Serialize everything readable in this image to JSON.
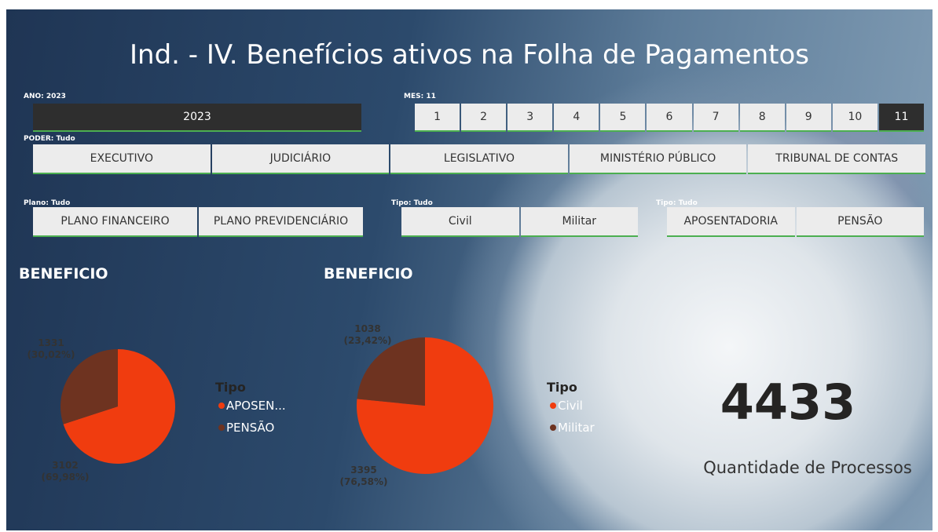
{
  "title": "Ind. - IV. Benefícios ativos na Folha de Pagamentos",
  "slicers": [
    {
      "label": "ANO: 2023",
      "items": [
        2023
      ],
      "selected": 2023
    },
    {
      "label": "MES: 11",
      "items": [
        1,
        2,
        3,
        4,
        5,
        6,
        7,
        8,
        9,
        10,
        11
      ],
      "selected": 11
    },
    {
      "label": "PODER: Tudo",
      "items": [
        "EXECUTIVO",
        "JUDICIÁRIO",
        "LEGISLATIVO",
        "MINISTÉRIO PÚBLICO",
        "TRIBUNAL DE CONTAS"
      ]
    },
    {
      "label": "Plano: Tudo",
      "items": [
        "PLANO FINANCEIRO",
        "PLANO PREVIDENCIÁRIO"
      ]
    },
    {
      "label": "Tipo: Tudo",
      "items": [
        "Civil",
        "Militar"
      ]
    },
    {
      "label": "Tipo: Tudo",
      "items": [
        "APOSENTADORIA",
        "PENSÃO"
      ]
    }
  ],
  "chart_data": [
    {
      "type": "pie",
      "title": "BENEFICIO",
      "legend_title": "Tipo",
      "categories": [
        "APOSEN...",
        "PENSÃO"
      ],
      "values": [
        3102,
        1331
      ],
      "value_labels": [
        "3102\n(69,98%)",
        "1331\n(30,02%)"
      ],
      "colors": [
        "#f03c0f",
        "#6e3320"
      ]
    },
    {
      "type": "pie",
      "title": "BENEFICIO",
      "legend_title": "Tipo",
      "categories": [
        "Civil",
        "Militar"
      ],
      "values": [
        3395,
        1038
      ],
      "value_labels": [
        "3395\n(76,58%)",
        "1038\n(23,42%)"
      ],
      "colors": [
        "#f03c0f",
        "#6e3320"
      ]
    }
  ],
  "kpi": {
    "value": 4433,
    "label": "Quantidade de Processos"
  }
}
